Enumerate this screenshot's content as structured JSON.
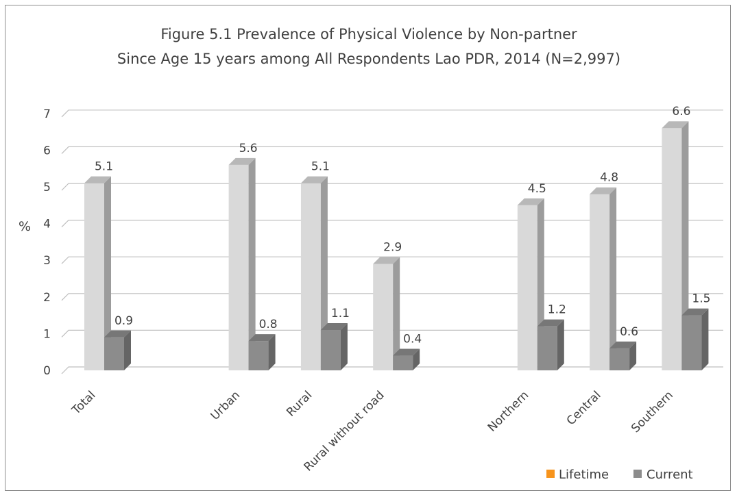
{
  "chart_data": {
    "type": "bar",
    "title": [
      "Figure 5.1 Prevalence of Physical Violence by Non-partner",
      "Since Age 15 years among All Respondents Lao PDR, 2014 (N=2,997)"
    ],
    "ylabel": "%",
    "ylim": [
      0,
      7
    ],
    "yticks": [
      "0",
      "1",
      "2",
      "3",
      "4",
      "5",
      "6",
      "7"
    ],
    "grid": true,
    "legend": "bottom-right",
    "categories": [
      "Total",
      "",
      "Urban",
      "Rural",
      "Rural without road",
      "",
      "Northern",
      "Central",
      "Southern"
    ],
    "series": [
      {
        "name": "Lifetime",
        "color": "#d9d9d9",
        "legend_color": "#f7941d",
        "values": [
          5.1,
          null,
          5.6,
          5.1,
          2.9,
          null,
          4.5,
          4.8,
          6.6
        ]
      },
      {
        "name": "Current",
        "color": "#8c8c8c",
        "legend_color": "#8c8c8c",
        "values": [
          0.9,
          null,
          0.8,
          1.1,
          0.4,
          null,
          1.2,
          0.6,
          1.5
        ]
      }
    ],
    "data_labels": [
      [
        "5.1",
        null,
        "5.6",
        "5.1",
        "2.9",
        null,
        "4.5",
        "4.8",
        "6.6"
      ],
      [
        "0.9",
        null,
        "0.8",
        "1.1",
        "0.4",
        null,
        "1.2",
        "0.6",
        "1.5"
      ]
    ]
  }
}
